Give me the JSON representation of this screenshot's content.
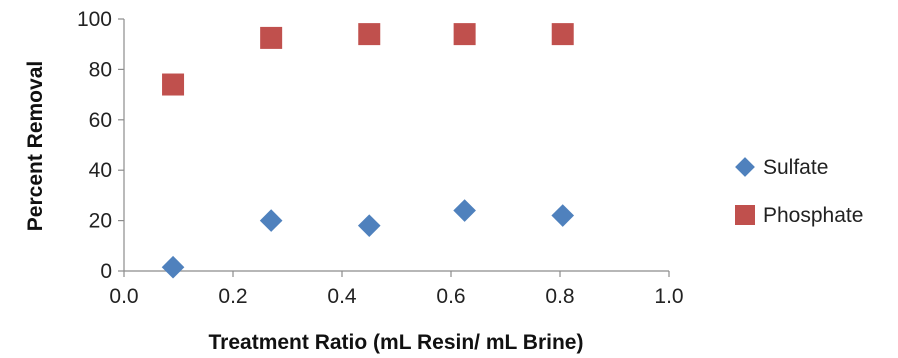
{
  "chart_data": {
    "type": "scatter",
    "title": "",
    "xlabel": "Treatment Ratio (mL Resin/ mL Brine)",
    "ylabel": "Percent Removal",
    "xlim": [
      0.0,
      1.0
    ],
    "ylim": [
      0,
      100
    ],
    "x_ticks": [
      "0.0",
      "0.2",
      "0.4",
      "0.6",
      "0.8",
      "1.0"
    ],
    "y_ticks": [
      "0",
      "20",
      "40",
      "60",
      "80",
      "100"
    ],
    "grid": false,
    "legend_position": "right",
    "series": [
      {
        "name": "Sulfate",
        "marker": "diamond",
        "color": "#4F81BD",
        "x": [
          0.09,
          0.27,
          0.45,
          0.625,
          0.805
        ],
        "y": [
          1.5,
          20,
          18,
          24,
          22
        ]
      },
      {
        "name": "Phosphate",
        "marker": "square",
        "color": "#C0504D",
        "x": [
          0.09,
          0.27,
          0.45,
          0.625,
          0.805
        ],
        "y": [
          74,
          92.5,
          94,
          94,
          94
        ]
      }
    ]
  }
}
